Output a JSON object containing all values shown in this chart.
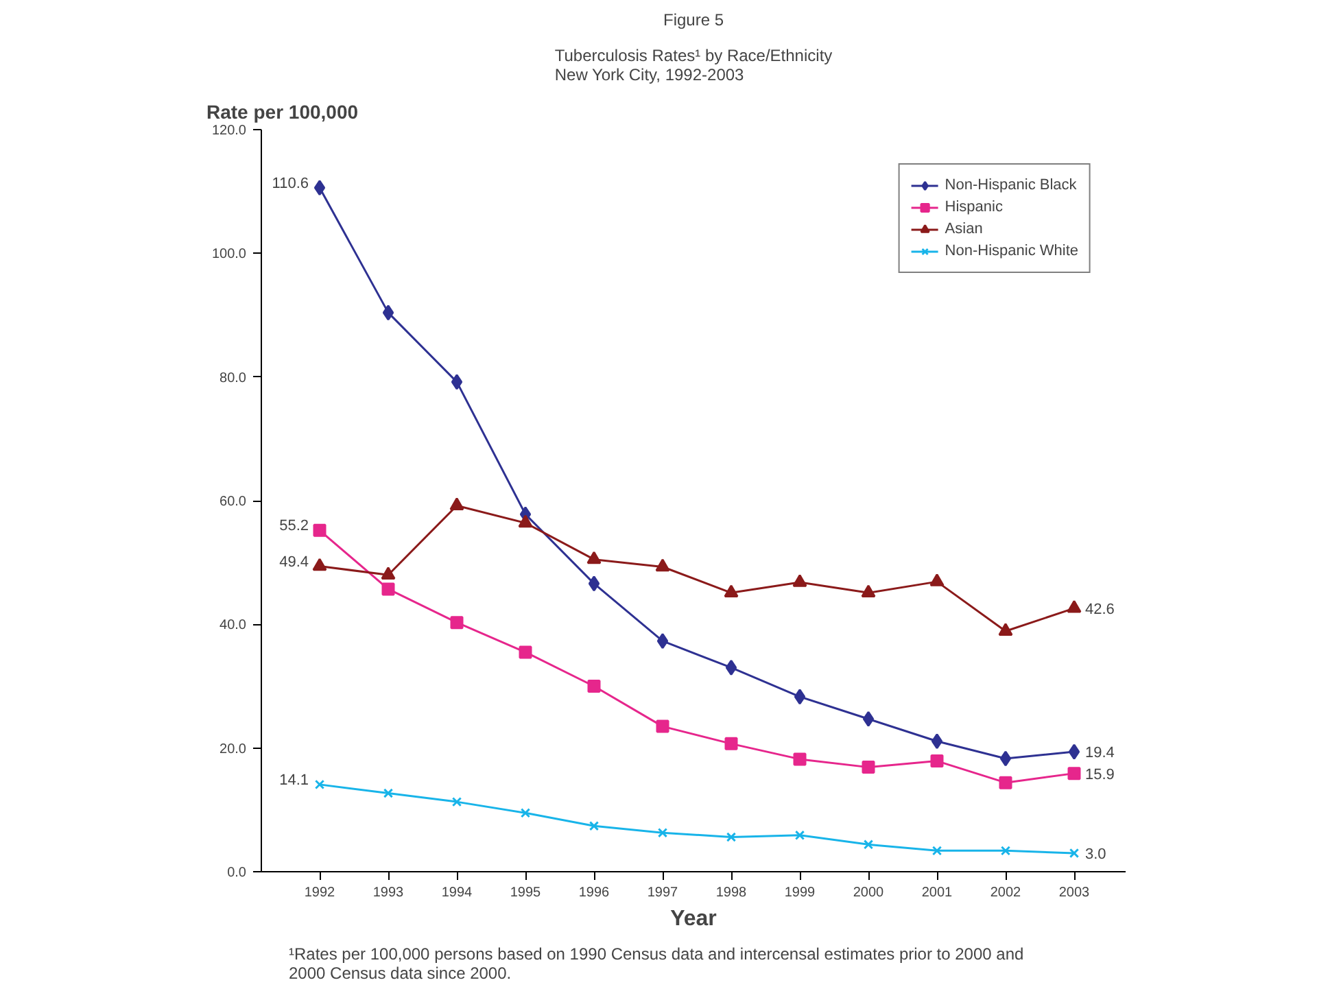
{
  "chart_data": {
    "type": "line",
    "title": "Figure 5",
    "subtitle": "Tuberculosis Rates¹ by Race/Ethnicity\nNew York City, 1992-2003",
    "xlabel": "Year",
    "ylabel": "Rate per 100,000",
    "categories": [
      "1992",
      "1993",
      "1994",
      "1995",
      "1996",
      "1997",
      "1998",
      "1999",
      "2000",
      "2001",
      "2002",
      "2003"
    ],
    "series": [
      {
        "name": "Non-Hispanic Black",
        "color": "#2e3192",
        "marker": "diamond",
        "values": [
          110.6,
          90.4,
          79.2,
          57.8,
          46.6,
          37.3,
          33.0,
          28.3,
          24.7,
          21.1,
          18.3,
          19.4
        ]
      },
      {
        "name": "Hispanic",
        "color": "#e6268c",
        "marker": "square",
        "values": [
          55.2,
          45.7,
          40.3,
          35.5,
          30.0,
          23.5,
          20.7,
          18.2,
          16.9,
          17.9,
          14.4,
          15.9
        ]
      },
      {
        "name": "Asian",
        "color": "#8b1a1a",
        "marker": "triangle",
        "values": [
          49.4,
          48.0,
          59.2,
          56.4,
          50.5,
          49.3,
          45.1,
          46.8,
          45.1,
          46.9,
          38.9,
          42.6
        ]
      },
      {
        "name": "Non-Hispanic White",
        "color": "#18b4e9",
        "marker": "cross",
        "values": [
          14.1,
          12.7,
          11.3,
          9.5,
          7.4,
          6.3,
          5.6,
          5.9,
          4.4,
          3.4,
          3.4,
          3.0
        ]
      }
    ],
    "ylim": [
      0,
      120
    ],
    "yticks": [
      {
        "value": 0,
        "label": "0.0"
      },
      {
        "value": 20,
        "label": "20.0"
      },
      {
        "value": 40,
        "label": "40.0"
      },
      {
        "value": 60,
        "label": "60.0"
      },
      {
        "value": 80,
        "label": "80.0"
      },
      {
        "value": 100,
        "label": "100.0"
      },
      {
        "value": 120,
        "label": "120.0"
      }
    ],
    "grid": false,
    "legend": "top right",
    "line_style": "solid",
    "annotations": [
      {
        "text": "110.6",
        "x": "1992",
        "y": 110.6
      },
      {
        "text": "55.2",
        "x": "1992",
        "y": 55.2
      },
      {
        "text": "49.4",
        "x": "1992",
        "y": 49.4
      },
      {
        "text": "14.1",
        "x": "1992",
        "y": 14.1
      },
      {
        "text": "42.6",
        "x": "2003",
        "y": 42.6
      },
      {
        "text": "19.4",
        "x": "2003",
        "y": 19.4
      },
      {
        "text": "15.9",
        "x": "2003",
        "y": 15.9
      },
      {
        "text": "3.0",
        "x": "2003",
        "y": 3.0
      },
      "¹Rates per 100,000 persons based on 1990 Census data and intercensal estimates prior to 2000 and\n2000 Census data since 2000."
    ]
  }
}
